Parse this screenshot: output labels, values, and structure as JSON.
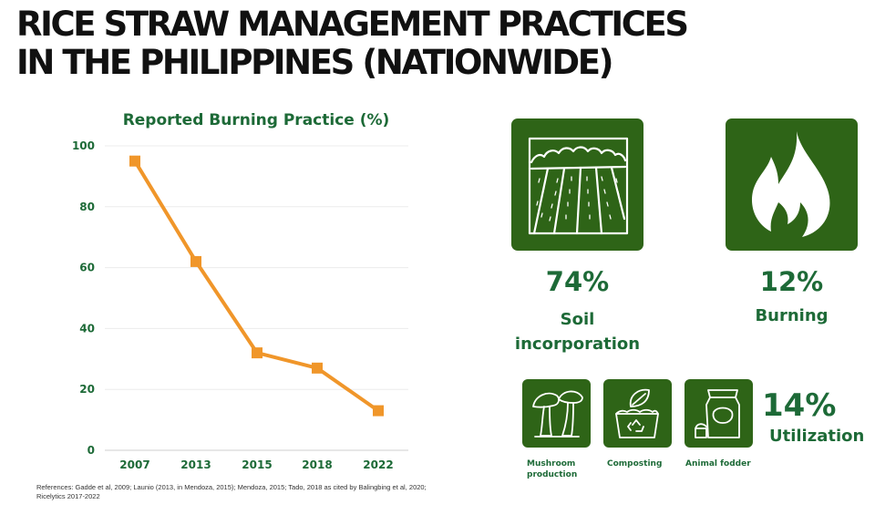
{
  "title": {
    "line1": "RICE STRAW MANAGEMENT PRACTICES",
    "line2": "IN THE PHILIPPINES (NATIONWIDE)"
  },
  "chart_data": {
    "type": "line",
    "title": "Reported Burning Practice (%)",
    "categories": [
      "2007",
      "2013",
      "2015",
      "2018",
      "2022"
    ],
    "values": [
      95,
      62,
      32,
      27,
      13
    ],
    "yticks": [
      "0",
      "20",
      "40",
      "60",
      "80",
      "100"
    ],
    "ylim": [
      0,
      100
    ],
    "xlabel": "",
    "ylabel": "",
    "line_color": "#f0962a",
    "grid": true
  },
  "stats": {
    "soil": {
      "pct": "74%",
      "label_line1": "Soil",
      "label_line2": "incorporation",
      "icon": "field-icon"
    },
    "burning": {
      "pct": "12%",
      "label": "Burning",
      "icon": "flame-icon"
    },
    "utilization": {
      "pct": "14%",
      "label": "Utilization"
    }
  },
  "utilization_items": [
    {
      "label_line1": "Mushroom",
      "label_line2": "production",
      "icon": "mushroom-icon"
    },
    {
      "label_line1": "Composting",
      "label_line2": "",
      "icon": "compost-icon"
    },
    {
      "label_line1": "Animal fodder",
      "label_line2": "",
      "icon": "fodder-icon"
    }
  ],
  "colors": {
    "green_box": "#2e6417",
    "green_text": "#1d6a37",
    "orange": "#f0962a"
  },
  "references": {
    "line1": "References: Gadde et al, 2009; Launio (2013, in Mendoza, 2015); Mendoza, 2015; Tado, 2018 as cited by Balingbing et al, 2020;",
    "line2": "Ricelytics 2017-2022"
  }
}
